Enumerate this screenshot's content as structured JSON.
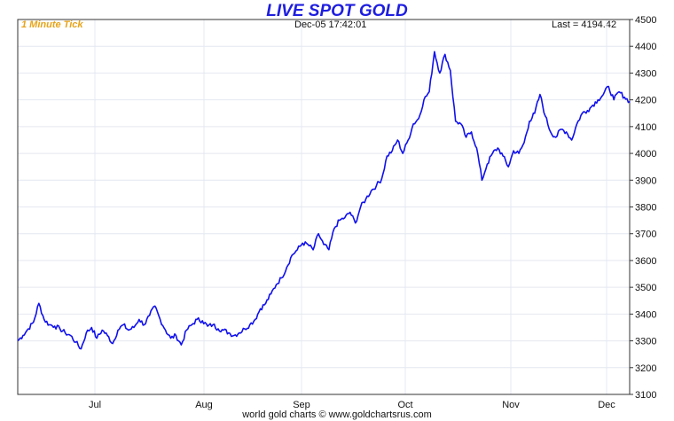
{
  "header": {
    "title": "LIVE SPOT GOLD",
    "tick_label": "1 Minute Tick",
    "timestamp": "Dec-05  17:42:01",
    "last_label": "Last = 4194.42"
  },
  "footer": {
    "credit": "world gold charts © www.goldchartsrus.com"
  },
  "colors": {
    "line": "#1010ee",
    "title": "#1e1ee0",
    "tick_label": "#e8a317",
    "grid": "#e4e8f0"
  },
  "chart_data": {
    "type": "line",
    "title": "LIVE SPOT GOLD",
    "xlabel": "",
    "ylabel": "",
    "x_ticks": [
      "Jul",
      "Aug",
      "Sep",
      "Oct",
      "Nov",
      "Dec"
    ],
    "ylim": [
      3100,
      4500
    ],
    "y_ticks": [
      "3100",
      "3200",
      "3300",
      "3400",
      "3500",
      "3600",
      "3700",
      "3800",
      "3900",
      "4000",
      "4100",
      "4200",
      "4300",
      "4400",
      "4500"
    ],
    "y_axis_side": "right",
    "grid": true,
    "series": [
      {
        "values": [
          3300,
          3320,
          3345,
          3370,
          3440,
          3380,
          3360,
          3355,
          3345,
          3330,
          3320,
          3295,
          3270,
          3330,
          3350,
          3310,
          3340,
          3320,
          3290,
          3340,
          3360,
          3340,
          3350,
          3380,
          3360,
          3395,
          3430,
          3380,
          3340,
          3310,
          3320,
          3285,
          3340,
          3360,
          3380,
          3375,
          3355,
          3360,
          3345,
          3340,
          3330,
          3320,
          3330,
          3345,
          3360,
          3380,
          3420,
          3440,
          3475,
          3510,
          3535,
          3575,
          3620,
          3640,
          3665,
          3660,
          3640,
          3700,
          3660,
          3640,
          3720,
          3750,
          3760,
          3780,
          3740,
          3800,
          3830,
          3860,
          3880,
          3905,
          3990,
          4010,
          4050,
          4000,
          4050,
          4110,
          4130,
          4200,
          4230,
          4380,
          4300,
          4370,
          4310,
          4120,
          4110,
          4060,
          4080,
          4020,
          3900,
          3960,
          4000,
          4020,
          3990,
          3950,
          4010,
          4000,
          4040,
          4120,
          4150,
          4220,
          4140,
          4080,
          4060,
          4090,
          4080,
          4050,
          4110,
          4150,
          4160,
          4180,
          4200,
          4220,
          4250,
          4200,
          4230,
          4210,
          4194
        ]
      }
    ]
  }
}
